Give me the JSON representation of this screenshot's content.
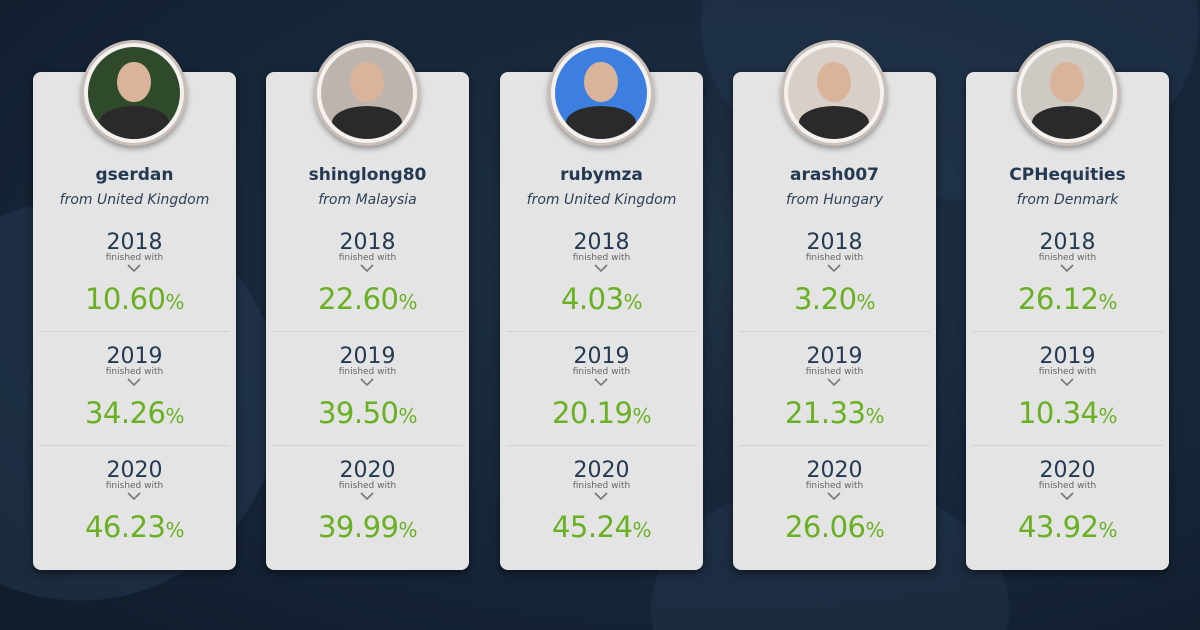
{
  "finished_label": "finished with",
  "accent_color": "#6ab023",
  "traders": [
    {
      "name": "gserdan",
      "from": "from United Kingdom",
      "avatar_bg": "#2f4a2a",
      "results": [
        {
          "year": "2018",
          "value": "10.60",
          "unit": "%"
        },
        {
          "year": "2019",
          "value": "34.26",
          "unit": "%"
        },
        {
          "year": "2020",
          "value": "46.23",
          "unit": "%"
        }
      ]
    },
    {
      "name": "shinglong80",
      "from": "from Malaysia",
      "avatar_bg": "#bdb4ae",
      "results": [
        {
          "year": "2018",
          "value": "22.60",
          "unit": "%"
        },
        {
          "year": "2019",
          "value": "39.50",
          "unit": "%"
        },
        {
          "year": "2020",
          "value": "39.99",
          "unit": "%"
        }
      ]
    },
    {
      "name": "rubymza",
      "from": "from United Kingdom",
      "avatar_bg": "#3d7fe0",
      "results": [
        {
          "year": "2018",
          "value": "4.03",
          "unit": "%"
        },
        {
          "year": "2019",
          "value": "20.19",
          "unit": "%"
        },
        {
          "year": "2020",
          "value": "45.24",
          "unit": "%"
        }
      ]
    },
    {
      "name": "arash007",
      "from": "from Hungary",
      "avatar_bg": "#d8cfc8",
      "results": [
        {
          "year": "2018",
          "value": "3.20",
          "unit": "%"
        },
        {
          "year": "2019",
          "value": "21.33",
          "unit": "%"
        },
        {
          "year": "2020",
          "value": "26.06",
          "unit": "%"
        }
      ]
    },
    {
      "name": "CPHequities",
      "from": "from Denmark",
      "avatar_bg": "#cfc9c3",
      "results": [
        {
          "year": "2018",
          "value": "26.12",
          "unit": "%"
        },
        {
          "year": "2019",
          "value": "10.34",
          "unit": "%"
        },
        {
          "year": "2020",
          "value": "43.92",
          "unit": "%"
        }
      ]
    }
  ]
}
